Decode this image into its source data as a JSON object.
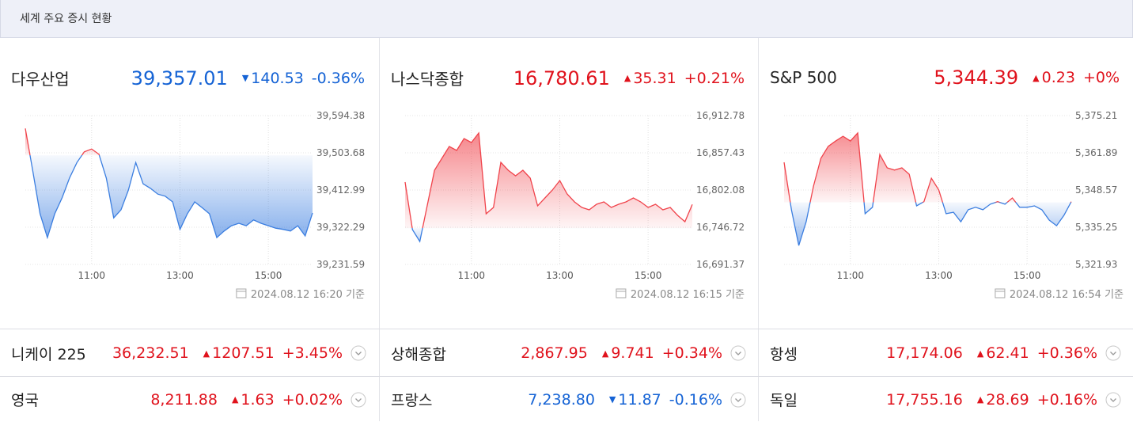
{
  "header": {
    "title": "세계 주요 증시 현황"
  },
  "main_indices": [
    {
      "name": "다우산업",
      "value": {
        "value": 39357.01,
        "label": "39,357.01"
      },
      "direction": "down",
      "change": 140.53,
      "change_pct": "-0.36%",
      "updated": "2024.08.12 16:20 기준",
      "chart_data": {
        "type": "line",
        "x": [
          570,
          580,
          590,
          600,
          610,
          620,
          630,
          640,
          650,
          660,
          670,
          680,
          690,
          700,
          710,
          720,
          730,
          740,
          750,
          760,
          770,
          780,
          790,
          800,
          810,
          820,
          830,
          840,
          850,
          860,
          870,
          880,
          890,
          900,
          910,
          920,
          930,
          940,
          950,
          960
        ],
        "values": [
          39563,
          39461,
          39355,
          39297,
          39355,
          39394,
          39442,
          39480,
          39506,
          39513,
          39500,
          39442,
          39345,
          39365,
          39413,
          39480,
          39428,
          39417,
          39403,
          39398,
          39384,
          39317,
          39355,
          39384,
          39370,
          39355,
          39297,
          39313,
          39326,
          39332,
          39326,
          39340,
          39332,
          39326,
          39320,
          39317,
          39313,
          39326,
          39301,
          39357.01
        ],
        "xlim": [
          570,
          960
        ],
        "ylim": [
          39231.59,
          39594.38
        ],
        "xticks": [
          {
            "value": 660,
            "label": "11:00"
          },
          {
            "value": 780,
            "label": "13:00"
          },
          {
            "value": 900,
            "label": "15:00"
          }
        ],
        "yticks": [
          {
            "value": 39594.38,
            "label": "39,594.38"
          },
          {
            "value": 39503.68,
            "label": "39,503.68"
          },
          {
            "value": 39412.99,
            "label": "39,412.99"
          },
          {
            "value": 39322.29,
            "label": "39,322.29"
          },
          {
            "value": 39231.59,
            "label": "39,231.59"
          }
        ],
        "grid": true
      }
    },
    {
      "name": "나스닥종합",
      "value": {
        "value": 16780.61,
        "label": "16,780.61"
      },
      "direction": "up",
      "change": 35.31,
      "change_pct": "+0.21%",
      "updated": "2024.08.12 16:15 기준",
      "chart_data": {
        "type": "line",
        "x": [
          570,
          580,
          590,
          600,
          610,
          620,
          630,
          640,
          650,
          660,
          670,
          680,
          690,
          700,
          710,
          720,
          730,
          740,
          750,
          760,
          770,
          780,
          790,
          800,
          810,
          820,
          830,
          840,
          850,
          860,
          870,
          880,
          890,
          900,
          910,
          920,
          930,
          940,
          950,
          960
        ],
        "values": [
          16813.9,
          16743.2,
          16725.5,
          16778.5,
          16831.5,
          16849.2,
          16866.9,
          16861,
          16878.6,
          16872.7,
          16886.9,
          16766.7,
          16776.2,
          16843.3,
          16831.5,
          16823.3,
          16831.5,
          16819.7,
          16778.5,
          16790.3,
          16802.1,
          16816.2,
          16796.2,
          16784.4,
          16776.2,
          16772.6,
          16780.9,
          16784.4,
          16776.2,
          16780.9,
          16784.4,
          16790.3,
          16784.4,
          16776.2,
          16780.9,
          16772.6,
          16776.2,
          16764.4,
          16755,
          16780.61
        ],
        "xlim": [
          570,
          960
        ],
        "ylim": [
          16691.37,
          16912.78
        ],
        "xticks": [
          {
            "value": 660,
            "label": "11:00"
          },
          {
            "value": 780,
            "label": "13:00"
          },
          {
            "value": 900,
            "label": "15:00"
          }
        ],
        "yticks": [
          {
            "value": 16912.78,
            "label": "16,912.78"
          },
          {
            "value": 16857.43,
            "label": "16,857.43"
          },
          {
            "value": 16802.08,
            "label": "16,802.08"
          },
          {
            "value": 16746.72,
            "label": "16,746.72"
          },
          {
            "value": 16691.37,
            "label": "16,691.37"
          }
        ],
        "grid": true
      }
    },
    {
      "name": "S&P 500",
      "value": {
        "value": 5344.39,
        "label": "5,344.39"
      },
      "direction": "up",
      "change": 0.23,
      "change_pct": "+0%",
      "updated": "2024.08.12 16:54 기준",
      "chart_data": {
        "type": "line",
        "x": [
          570,
          580,
          590,
          600,
          610,
          620,
          630,
          640,
          650,
          660,
          670,
          680,
          690,
          700,
          710,
          720,
          730,
          740,
          750,
          760,
          770,
          780,
          790,
          800,
          810,
          820,
          830,
          840,
          850,
          860,
          870,
          880,
          890,
          900,
          910,
          920,
          930,
          940,
          950,
          960
        ],
        "values": [
          5358.5,
          5341.5,
          5328.7,
          5337.2,
          5350,
          5359.9,
          5364.2,
          5366.1,
          5367.8,
          5366.1,
          5369,
          5340.1,
          5342.4,
          5361.3,
          5356.5,
          5355.7,
          5356.5,
          5354.2,
          5342.9,
          5344.4,
          5352.8,
          5348.6,
          5340.1,
          5340.6,
          5337.2,
          5341.5,
          5342.4,
          5341.5,
          5343.5,
          5344.4,
          5343.5,
          5345.7,
          5342.4,
          5342.4,
          5342.9,
          5341.5,
          5337.8,
          5335.8,
          5339.5,
          5344.39
        ],
        "xlim": [
          570,
          960
        ],
        "ylim": [
          5321.93,
          5375.21
        ],
        "xticks": [
          {
            "value": 660,
            "label": "11:00"
          },
          {
            "value": 780,
            "label": "13:00"
          },
          {
            "value": 900,
            "label": "15:00"
          }
        ],
        "yticks": [
          {
            "value": 5375.21,
            "label": "5,375.21"
          },
          {
            "value": 5361.89,
            "label": "5,361.89"
          },
          {
            "value": 5348.57,
            "label": "5,348.57"
          },
          {
            "value": 5335.25,
            "label": "5,335.25"
          },
          {
            "value": 5321.93,
            "label": "5,321.93"
          }
        ],
        "grid": true
      }
    }
  ],
  "other_indices": [
    {
      "name": "니케이 225",
      "value": "36,232.51",
      "direction": "up",
      "change": 1207.51,
      "change_pct": "+3.45%"
    },
    {
      "name": "상해종합",
      "value": "2,867.95",
      "direction": "up",
      "change": 9.741,
      "change_pct": "+0.34%"
    },
    {
      "name": "항셍",
      "value": "17,174.06",
      "direction": "up",
      "change": 62.41,
      "change_pct": "+0.36%"
    },
    {
      "name": "영국",
      "value": "8,211.88",
      "direction": "up",
      "change": 1.63,
      "change_pct": "+0.02%"
    },
    {
      "name": "프랑스",
      "value": "7,238.80",
      "direction": "down",
      "change": 11.87,
      "change_pct": "-0.16%"
    },
    {
      "name": "독일",
      "value": "17,755.16",
      "direction": "up",
      "change": 28.69,
      "change_pct": "+0.16%"
    }
  ]
}
